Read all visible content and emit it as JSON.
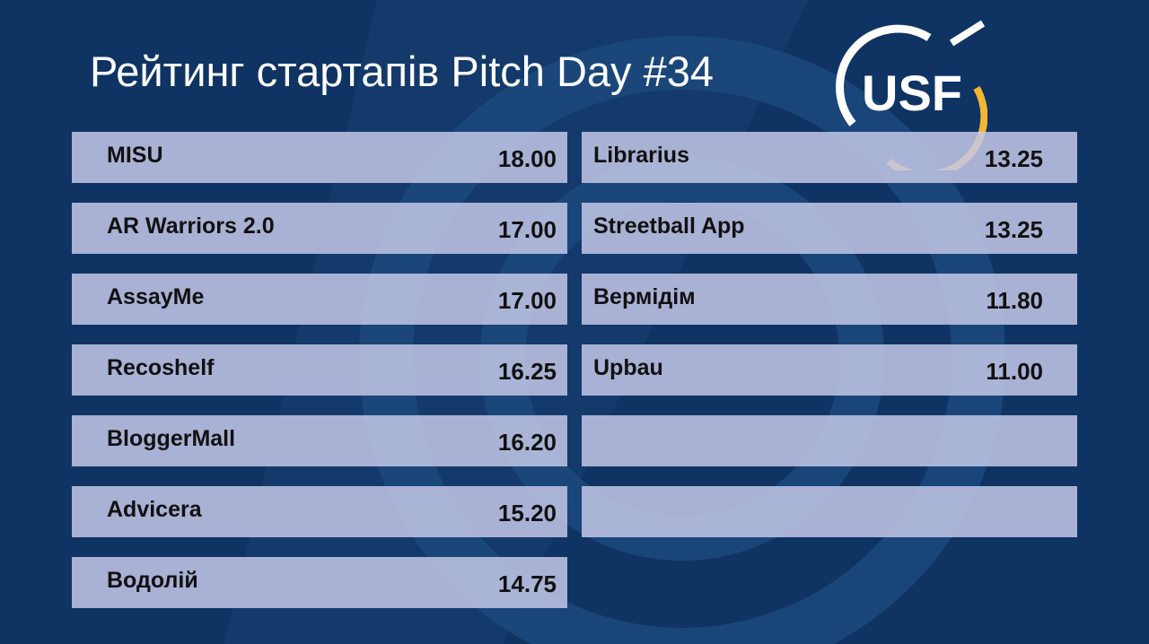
{
  "title": "Рейтинг стартапів Pitch Day #34",
  "logo_text": "USF",
  "colors": {
    "background": "#0f3463",
    "row": "#c4c8e8",
    "logo_accent": "#f4b731"
  },
  "left_column": [
    {
      "name": "MISU",
      "score": "18.00"
    },
    {
      "name": "AR Warriors 2.0",
      "score": "17.00"
    },
    {
      "name": "AssayMe",
      "score": "17.00"
    },
    {
      "name": "Recoshelf",
      "score": "16.25"
    },
    {
      "name": "BloggerMall",
      "score": "16.20"
    },
    {
      "name": "Advicera",
      "score": "15.20"
    },
    {
      "name": "Водолій",
      "score": "14.75"
    }
  ],
  "right_column": [
    {
      "name": "Librarius",
      "score": "13.25"
    },
    {
      "name": "Streetball App",
      "score": "13.25"
    },
    {
      "name": "Вермідім",
      "score": "11.80"
    },
    {
      "name": "Upbau",
      "score": "11.00"
    },
    {
      "name": "",
      "score": ""
    },
    {
      "name": "",
      "score": ""
    }
  ]
}
